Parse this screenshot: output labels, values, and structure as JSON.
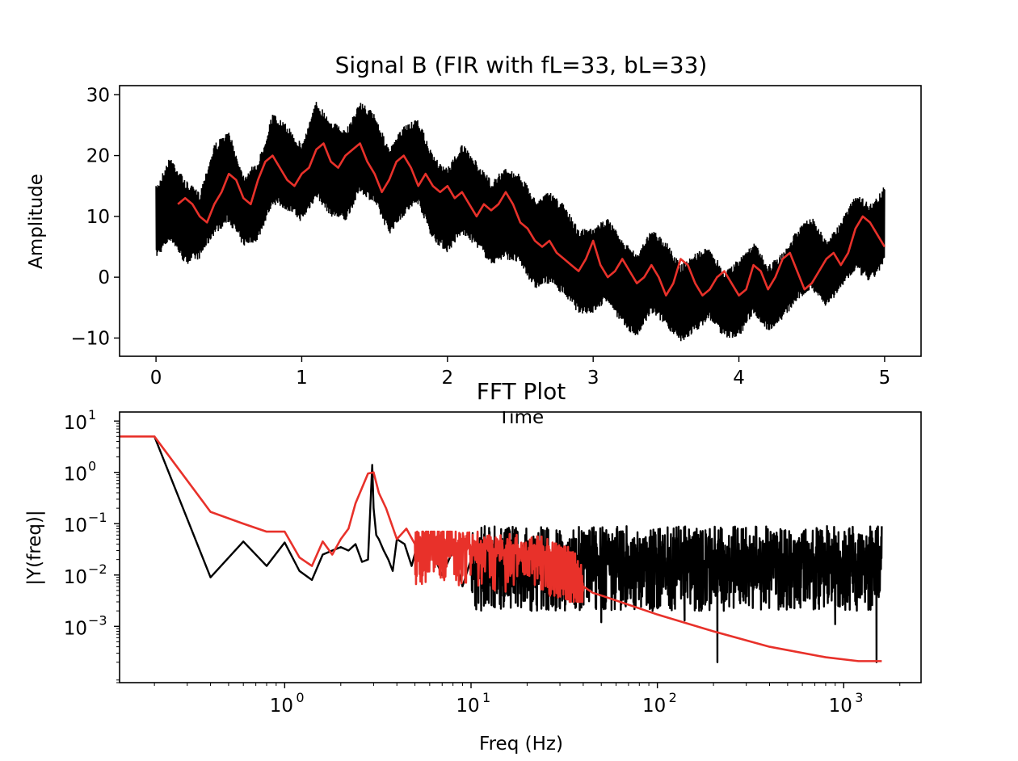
{
  "colors": {
    "signal": "#000000",
    "filtered": "#e8312a",
    "axes": "#000000",
    "background": "#ffffff"
  },
  "chart_data": [
    {
      "type": "line",
      "title": "Signal B (FIR with fL=33, bL=33)",
      "xlabel": "Time",
      "ylabel": "Amplitude",
      "xlim": [
        -0.25,
        5.25
      ],
      "ylim": [
        -13,
        31.5
      ],
      "grid": false,
      "xticks": [
        0,
        1,
        2,
        3,
        4,
        5
      ],
      "xtick_labels": [
        "0",
        "1",
        "2",
        "3",
        "4",
        "5"
      ],
      "yticks": [
        -10,
        0,
        10,
        20,
        30
      ],
      "ytick_labels": [
        "−10",
        "0",
        "10",
        "20",
        "30"
      ],
      "series": [
        {
          "color": "#000000",
          "style": "dense oscillation band",
          "x": [
            0,
            0.1,
            0.2,
            0.3,
            0.4,
            0.5,
            0.6,
            0.7,
            0.8,
            0.9,
            1.0,
            1.1,
            1.2,
            1.3,
            1.4,
            1.5,
            1.6,
            1.7,
            1.8,
            1.9,
            2.0,
            2.1,
            2.2,
            2.3,
            2.4,
            2.5,
            2.6,
            2.7,
            2.8,
            2.9,
            3.0,
            3.1,
            3.2,
            3.3,
            3.4,
            3.5,
            3.6,
            3.7,
            3.8,
            3.9,
            4.0,
            4.1,
            4.2,
            4.3,
            4.4,
            4.5,
            4.6,
            4.7,
            4.8,
            4.9,
            5.0
          ],
          "upper": [
            15,
            20,
            16,
            14,
            22,
            24,
            17,
            19,
            27,
            25,
            22,
            29,
            26,
            24,
            29,
            27,
            21,
            25,
            26,
            20,
            18,
            22,
            19,
            16,
            18,
            17,
            13,
            14,
            12,
            8,
            8,
            10,
            6,
            4,
            8,
            6,
            2,
            4,
            5,
            1,
            3,
            6,
            2,
            4,
            8,
            10,
            6,
            9,
            14,
            12,
            15
          ],
          "lower": [
            3,
            6,
            2,
            3,
            7,
            9,
            5,
            6,
            12,
            11,
            9,
            13,
            10,
            9,
            14,
            12,
            7,
            10,
            12,
            6,
            4,
            7,
            5,
            2,
            3,
            2,
            -2,
            -1,
            -3,
            -6,
            -6,
            -4,
            -8,
            -10,
            -6,
            -8,
            -11,
            -9,
            -7,
            -10,
            -10,
            -6,
            -9,
            -7,
            -4,
            -2,
            -5,
            -2,
            1,
            -1,
            2
          ]
        },
        {
          "color": "#e8312a",
          "x": [
            0.15,
            0.2,
            0.25,
            0.3,
            0.35,
            0.4,
            0.45,
            0.5,
            0.55,
            0.6,
            0.65,
            0.7,
            0.75,
            0.8,
            0.85,
            0.9,
            0.95,
            1.0,
            1.05,
            1.1,
            1.15,
            1.2,
            1.25,
            1.3,
            1.35,
            1.4,
            1.45,
            1.5,
            1.55,
            1.6,
            1.65,
            1.7,
            1.75,
            1.8,
            1.85,
            1.9,
            1.95,
            2.0,
            2.05,
            2.1,
            2.15,
            2.2,
            2.25,
            2.3,
            2.35,
            2.4,
            2.45,
            2.5,
            2.55,
            2.6,
            2.65,
            2.7,
            2.75,
            2.8,
            2.85,
            2.9,
            2.95,
            3.0,
            3.05,
            3.1,
            3.15,
            3.2,
            3.25,
            3.3,
            3.35,
            3.4,
            3.45,
            3.5,
            3.55,
            3.6,
            3.65,
            3.7,
            3.75,
            3.8,
            3.85,
            3.9,
            3.95,
            4.0,
            4.05,
            4.1,
            4.15,
            4.2,
            4.25,
            4.3,
            4.35,
            4.4,
            4.45,
            4.5,
            4.55,
            4.6,
            4.65,
            4.7,
            4.75,
            4.8,
            4.85,
            4.9,
            4.95,
            5.0
          ],
          "y": [
            12,
            13,
            12,
            10,
            9,
            12,
            14,
            17,
            16,
            13,
            12,
            16,
            19,
            20,
            18,
            16,
            15,
            17,
            18,
            21,
            22,
            19,
            18,
            20,
            21,
            22,
            19,
            17,
            14,
            16,
            19,
            20,
            18,
            15,
            17,
            15,
            14,
            15,
            13,
            14,
            12,
            10,
            12,
            11,
            12,
            14,
            12,
            9,
            8,
            6,
            5,
            6,
            4,
            3,
            2,
            1,
            3,
            6,
            2,
            0,
            1,
            3,
            1,
            -1,
            0,
            2,
            0,
            -3,
            -1,
            3,
            2,
            -1,
            -3,
            -2,
            0,
            1,
            -1,
            -3,
            -2,
            2,
            1,
            -2,
            0,
            3,
            4,
            1,
            -2,
            -1,
            1,
            3,
            4,
            2,
            4,
            8,
            10,
            9,
            7,
            5
          ]
        }
      ]
    },
    {
      "type": "line",
      "title": "FFT Plot",
      "xlabel": "Freq (Hz)",
      "ylabel": "|Y(freq)|",
      "xscale": "log",
      "yscale": "log",
      "xlim": [
        0.13,
        2600
      ],
      "ylim": [
        8e-05,
        15
      ],
      "grid": false,
      "xticks": [
        1,
        10,
        100,
        1000
      ],
      "xtick_labels": [
        "10",
        "10",
        "10",
        "10"
      ],
      "xtick_exponents": [
        "0",
        "1",
        "2",
        "3"
      ],
      "yticks": [
        0.001,
        0.01,
        0.1,
        1,
        10
      ],
      "ytick_labels": [
        "10",
        "10",
        "10",
        "10",
        "10"
      ],
      "ytick_exponents": [
        "−3",
        "−2",
        "−1",
        "0",
        "1"
      ],
      "series": [
        {
          "color": "#000000",
          "x": [
            0.13,
            0.2,
            0.4,
            0.6,
            0.8,
            1.0,
            1.2,
            1.4,
            1.6,
            1.8,
            2.0,
            2.2,
            2.4,
            2.6,
            2.8,
            2.95,
            3.0,
            3.1,
            3.2,
            3.4,
            3.6,
            3.8,
            4.0,
            4.4,
            4.8,
            5.2,
            5.6,
            6.0,
            7.0,
            8.0,
            9.0,
            10.0
          ],
          "y": [
            5,
            5,
            0.009,
            0.045,
            0.015,
            0.043,
            0.012,
            0.008,
            0.025,
            0.03,
            0.035,
            0.03,
            0.04,
            0.018,
            0.02,
            1.4,
            0.2,
            0.06,
            0.05,
            0.03,
            0.02,
            0.012,
            0.05,
            0.04,
            0.015,
            0.045,
            0.02,
            0.035,
            0.01,
            0.03,
            0.006,
            0.02
          ],
          "noisy_band": {
            "from": 10,
            "to": 1600,
            "upper": 0.09,
            "lower": 0.002,
            "dips": [
              [
                210,
                0.0002
              ],
              [
                1500,
                0.0002
              ],
              [
                50,
                0.0012
              ],
              [
                140,
                0.0013
              ],
              [
                900,
                0.0011
              ]
            ]
          }
        },
        {
          "color": "#e8312a",
          "x": [
            0.13,
            0.2,
            0.4,
            0.6,
            0.8,
            1.0,
            1.2,
            1.4,
            1.6,
            1.8,
            2.0,
            2.2,
            2.4,
            2.6,
            2.8,
            3.0,
            3.2,
            3.5,
            4.0,
            4.5,
            5.0,
            6.0,
            8.0,
            10,
            15,
            20,
            25,
            30,
            35,
            40,
            45,
            50,
            100,
            200,
            400,
            800,
            1200,
            1600
          ],
          "y": [
            5,
            5,
            0.17,
            0.1,
            0.07,
            0.07,
            0.022,
            0.015,
            0.045,
            0.025,
            0.05,
            0.08,
            0.25,
            0.5,
            0.95,
            1.0,
            0.4,
            0.2,
            0.05,
            0.08,
            0.04,
            0.045,
            0.04,
            0.035,
            0.03,
            0.028,
            0.025,
            0.02,
            0.015,
            0.006,
            0.0045,
            0.004,
            0.0017,
            0.0008,
            0.0004,
            0.00025,
            0.00021,
            0.00021
          ],
          "noisy_band": {
            "from": 5,
            "to": 40,
            "upper": 0.07,
            "lower": 0.003
          }
        }
      ]
    }
  ]
}
